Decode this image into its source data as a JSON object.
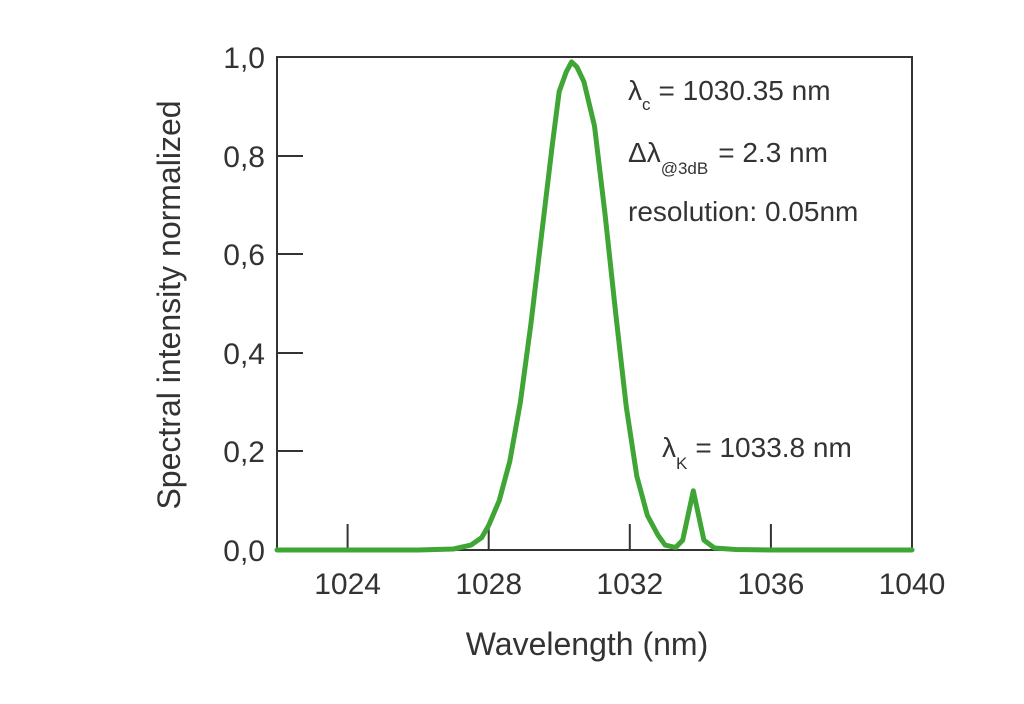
{
  "chart_data": {
    "type": "line",
    "title": "",
    "xlabel": "Wavelength (nm)",
    "ylabel": "Spectral intensity normalized",
    "xlim": [
      1022,
      1040
    ],
    "ylim": [
      0,
      1.0
    ],
    "x_ticks": [
      1024,
      1028,
      1032,
      1036,
      1040
    ],
    "x_tick_labels": [
      "1024",
      "1028",
      "1032",
      "1036",
      "1040"
    ],
    "y_ticks": [
      0,
      0.2,
      0.4,
      0.6,
      0.8,
      1.0
    ],
    "y_tick_labels": [
      "0,0",
      "0,2",
      "0,4",
      "0,6",
      "0,8",
      "1,0"
    ],
    "grid": false,
    "line_color": "#3fa535",
    "series": [
      {
        "x": [
          1022.0,
          1024.0,
          1026.0,
          1027.0,
          1027.5,
          1027.8,
          1028.0,
          1028.3,
          1028.6,
          1028.9,
          1029.2,
          1029.5,
          1029.8,
          1030.0,
          1030.2,
          1030.35,
          1030.5,
          1030.7,
          1031.0,
          1031.3,
          1031.6,
          1031.9,
          1032.2,
          1032.5,
          1032.8,
          1033.0,
          1033.3,
          1033.5,
          1033.65,
          1033.8,
          1033.95,
          1034.1,
          1034.4,
          1035.0,
          1036.0,
          1038.0,
          1040.0
        ],
        "values": [
          0.0,
          0.0,
          0.0,
          0.002,
          0.01,
          0.025,
          0.05,
          0.1,
          0.18,
          0.3,
          0.46,
          0.64,
          0.82,
          0.93,
          0.97,
          0.99,
          0.98,
          0.95,
          0.86,
          0.68,
          0.48,
          0.29,
          0.15,
          0.07,
          0.03,
          0.01,
          0.005,
          0.02,
          0.07,
          0.12,
          0.07,
          0.02,
          0.004,
          0.001,
          0.0,
          0.0,
          0.0
        ]
      }
    ],
    "annotations": {
      "center_symbol": "λ",
      "center_sub": "c",
      "center_value": "= 1030.35 nm",
      "width_symbol": "Δλ",
      "width_sub": "@3dB",
      "width_value": "= 2.3 nm",
      "resolution": "resolution: 0.05nm",
      "side_symbol": "λ",
      "side_sub": "K",
      "side_value": "= 1033.8 nm"
    }
  }
}
